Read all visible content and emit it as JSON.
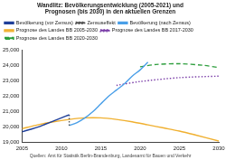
{
  "chart_data": {
    "type": "line",
    "title": "Wandlitz: Bevölkerungsentwicklung (2005-2021) und Prognosen (bis 2030) in den aktuellen Grenzen",
    "subtitle": "Quellen: Amt für Statistik Berlin-Brandenburg, Landesamt für Bauen und Verkehr",
    "xlim": [
      2005,
      2030
    ],
    "xticks": [
      2005,
      2010,
      2015,
      2020,
      2025,
      2030
    ],
    "ylim": [
      19000,
      25000
    ],
    "yticks": [
      {
        "value": 19000,
        "label": "19,000"
      },
      {
        "value": 20000,
        "label": "20,000"
      },
      {
        "value": 21000,
        "label": "21,000"
      },
      {
        "value": 22000,
        "label": "22,000"
      },
      {
        "value": 23000,
        "label": "23,000"
      },
      {
        "value": 24000,
        "label": "24,000"
      },
      {
        "value": 25000,
        "label": "25,000"
      }
    ],
    "grid": false,
    "legend": "top",
    "series": [
      {
        "name": "Bevölkerung (vor Zensus)",
        "color": "#1f3f99",
        "line_style": "solid",
        "x": [
          2005,
          2006,
          2007,
          2008,
          2009,
          2010,
          2011
        ],
        "values": [
          19700,
          19850,
          20000,
          20200,
          20400,
          20600,
          20800
        ]
      },
      {
        "name": "Zensuseffekt",
        "color": "#555555",
        "line_style": "dotted",
        "x": [
          2011,
          2011
        ],
        "values": [
          20800,
          20100
        ]
      },
      {
        "name": "Bevölkerung (nach Zensus)",
        "color": "#4a9fe8",
        "line_style": "solid",
        "x": [
          2011,
          2012,
          2013,
          2014,
          2015,
          2016,
          2017,
          2018,
          2019,
          2020,
          2021
        ],
        "values": [
          20100,
          20300,
          20600,
          21000,
          21500,
          22000,
          22400,
          22800,
          23300,
          23700,
          24200
        ]
      },
      {
        "name": "Prognose des Landes BB 2005-2030",
        "color": "#f0b030",
        "line_style": "solid",
        "x": [
          2005,
          2007,
          2009,
          2011,
          2013,
          2015,
          2017,
          2019,
          2021,
          2023,
          2025,
          2027,
          2030
        ],
        "values": [
          19900,
          20150,
          20350,
          20500,
          20600,
          20600,
          20500,
          20350,
          20150,
          19950,
          19750,
          19500,
          19100
        ]
      },
      {
        "name": "Prognose des Landes BB 2017-2030",
        "color": "#7b3fa8",
        "line_style": "dotted",
        "x": [
          2017,
          2020,
          2025,
          2030
        ],
        "values": [
          22700,
          22950,
          23200,
          23300
        ]
      },
      {
        "name": "Prognose des Landes BB 2020-2030",
        "color": "#2e9e3e",
        "line_style": "dashed",
        "x": [
          2020,
          2022,
          2025,
          2028,
          2030
        ],
        "values": [
          23900,
          24050,
          24100,
          24000,
          23850
        ]
      }
    ]
  }
}
